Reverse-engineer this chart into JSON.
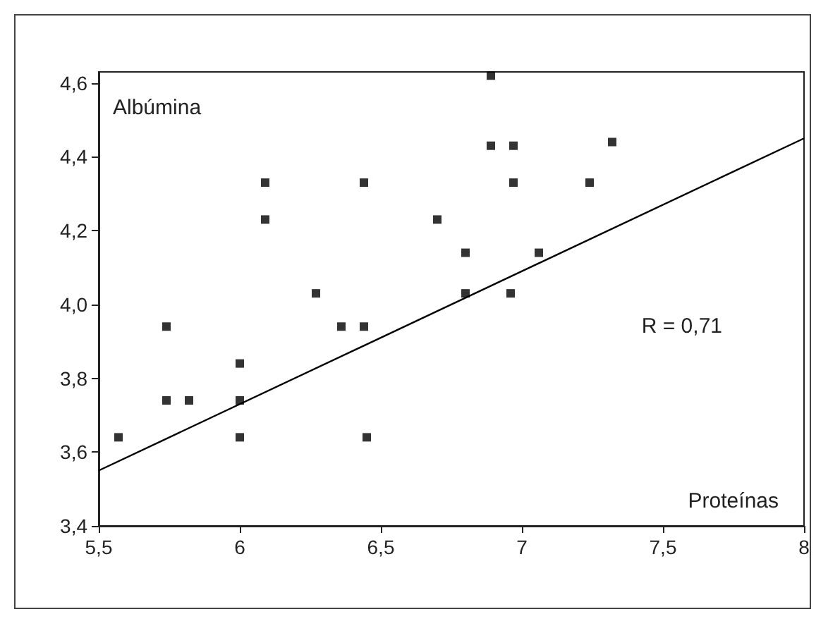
{
  "chart_data": {
    "type": "scatter",
    "xlabel": "Proteínas",
    "ylabel": "Albúmina",
    "annotations": [
      "R = 0,71"
    ],
    "xlim": [
      5.5,
      8
    ],
    "ylim": [
      3.4,
      4.63
    ],
    "xticks": [
      {
        "value": 5.5,
        "label": "5,5"
      },
      6,
      {
        "value": 6.5,
        "label": "6,5"
      },
      7,
      {
        "value": 7.5,
        "label": "7,5"
      },
      8
    ],
    "yticks": [
      {
        "value": 3.4,
        "label": "3,4"
      },
      {
        "value": 3.6,
        "label": "3,6"
      },
      {
        "value": 3.8,
        "label": "3,8"
      },
      {
        "value": 4.0,
        "label": "4,0"
      },
      {
        "value": 4.2,
        "label": "4,2"
      },
      {
        "value": 4.4,
        "label": "4,4"
      },
      {
        "value": 4.6,
        "label": "4,6"
      }
    ],
    "grid": false,
    "marker": "square",
    "series": [
      {
        "type": "scatter",
        "color": "#000000",
        "x": [
          5.57,
          5.74,
          5.74,
          5.82,
          6.0,
          6.0,
          6.0,
          6.09,
          6.09,
          6.27,
          6.36,
          6.44,
          6.44,
          6.45,
          6.7,
          6.89,
          6.89,
          6.97,
          7.32,
          6.97,
          7.24,
          6.8,
          7.06,
          6.8,
          6.96
        ],
        "values": [
          3.64,
          3.94,
          3.74,
          3.74,
          3.84,
          3.74,
          3.64,
          4.33,
          4.23,
          4.03,
          3.94,
          3.94,
          4.33,
          3.64,
          4.23,
          4.62,
          4.43,
          4.43,
          4.44,
          4.33,
          4.33,
          4.14,
          4.14,
          4.03,
          4.03
        ]
      },
      {
        "type": "line",
        "color": "#000000",
        "marker": "none",
        "x": [
          5.5,
          8
        ],
        "values": [
          3.55,
          4.45
        ]
      }
    ]
  }
}
